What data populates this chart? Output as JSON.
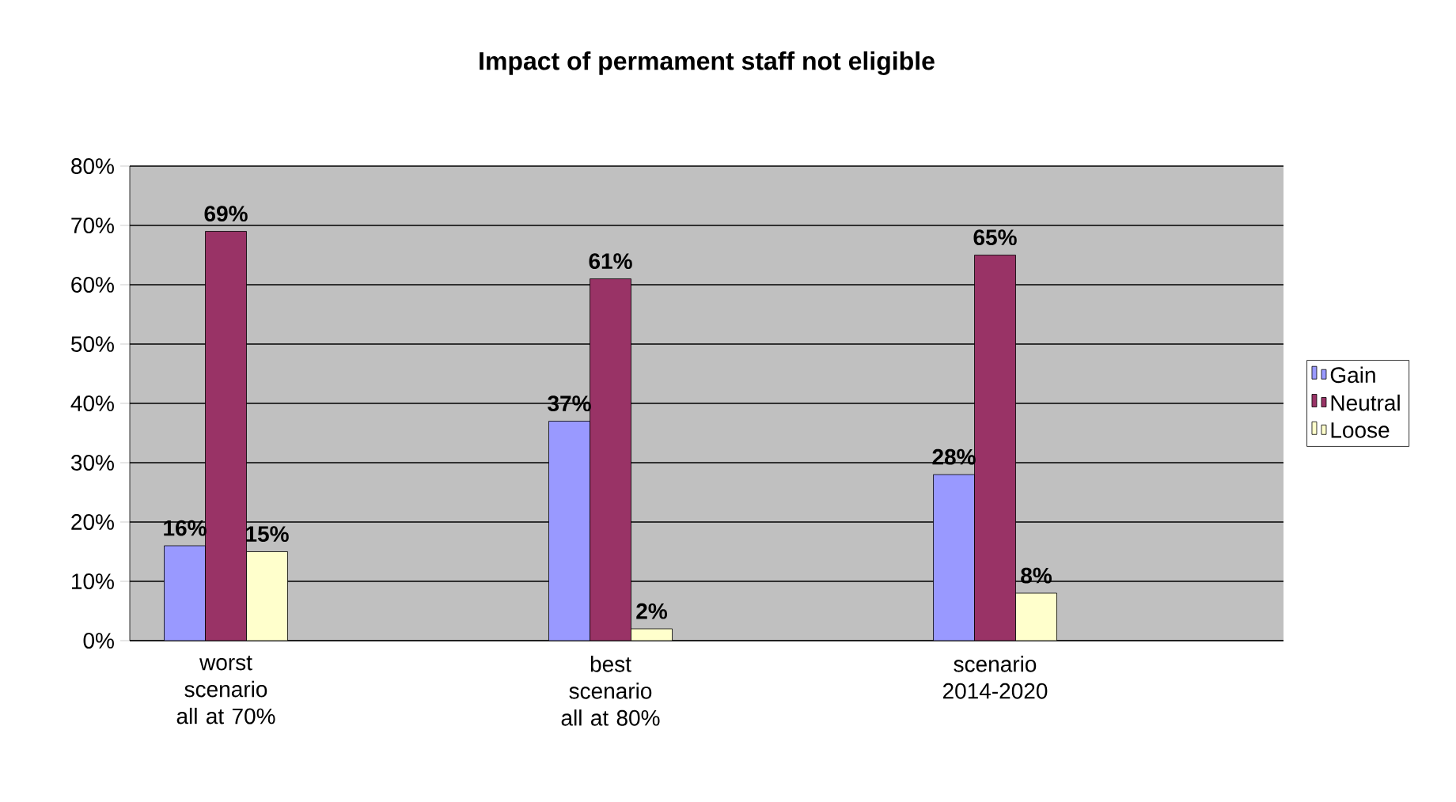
{
  "chart_data": {
    "type": "bar",
    "title": "Impact of permament staff not eligible",
    "categories": [
      "worst scenario all at 70%",
      null,
      "best scenario all at 80%",
      null,
      "scenario 2014-2020",
      null
    ],
    "series": [
      {
        "name": "Gain",
        "color": "#9999ff",
        "values": [
          16,
          null,
          37,
          null,
          28,
          null
        ],
        "value_labels": [
          "16%",
          null,
          "37%",
          null,
          "28%",
          null
        ]
      },
      {
        "name": "Neutral",
        "color": "#993366",
        "values": [
          69,
          null,
          61,
          null,
          65,
          null
        ],
        "value_labels": [
          "69%",
          null,
          "61%",
          null,
          "65%",
          null
        ]
      },
      {
        "name": "Loose",
        "color": "#ffffcc",
        "values": [
          15,
          null,
          2,
          null,
          8,
          null
        ],
        "value_labels": [
          "15%",
          null,
          "2%",
          null,
          "8%",
          null
        ]
      }
    ],
    "ylim": [
      0,
      80
    ],
    "yticks": [
      {
        "value": 0,
        "label": "0%"
      },
      {
        "value": 10,
        "label": "10%"
      },
      {
        "value": 20,
        "label": "20%"
      },
      {
        "value": 30,
        "label": "30%"
      },
      {
        "value": 40,
        "label": "40%"
      },
      {
        "value": 50,
        "label": "50%"
      },
      {
        "value": 60,
        "label": "60%"
      },
      {
        "value": 70,
        "label": "70%"
      },
      {
        "value": 80,
        "label": "80%"
      }
    ],
    "grid": "y",
    "legend": "right"
  }
}
